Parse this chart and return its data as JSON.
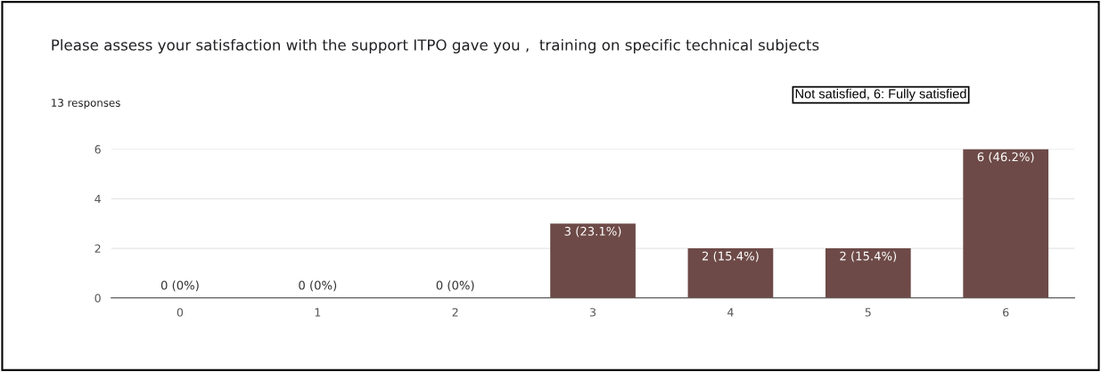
{
  "chart_data": {
    "type": "bar",
    "title": "Please assess your satisfaction with the support ITPO gave you ,  training on specific technical subjects",
    "subtitle": "13 responses",
    "annotations": [
      "Not satisfied, 6: Fully satisfied"
    ],
    "categories": [
      "0",
      "1",
      "2",
      "3",
      "4",
      "5",
      "6"
    ],
    "values": [
      0,
      0,
      0,
      3,
      2,
      2,
      6
    ],
    "value_labels": [
      "0 (0%)",
      "0 (0%)",
      "0 (0%)",
      "3 (23.1%)",
      "2 (15.4%)",
      "2 (15.4%)",
      "6 (46.2%)"
    ],
    "color": "#6d4a47",
    "ylim": [
      0,
      6
    ],
    "yticks": [
      0,
      2,
      4,
      6
    ],
    "grid": "y",
    "legend": false
  }
}
